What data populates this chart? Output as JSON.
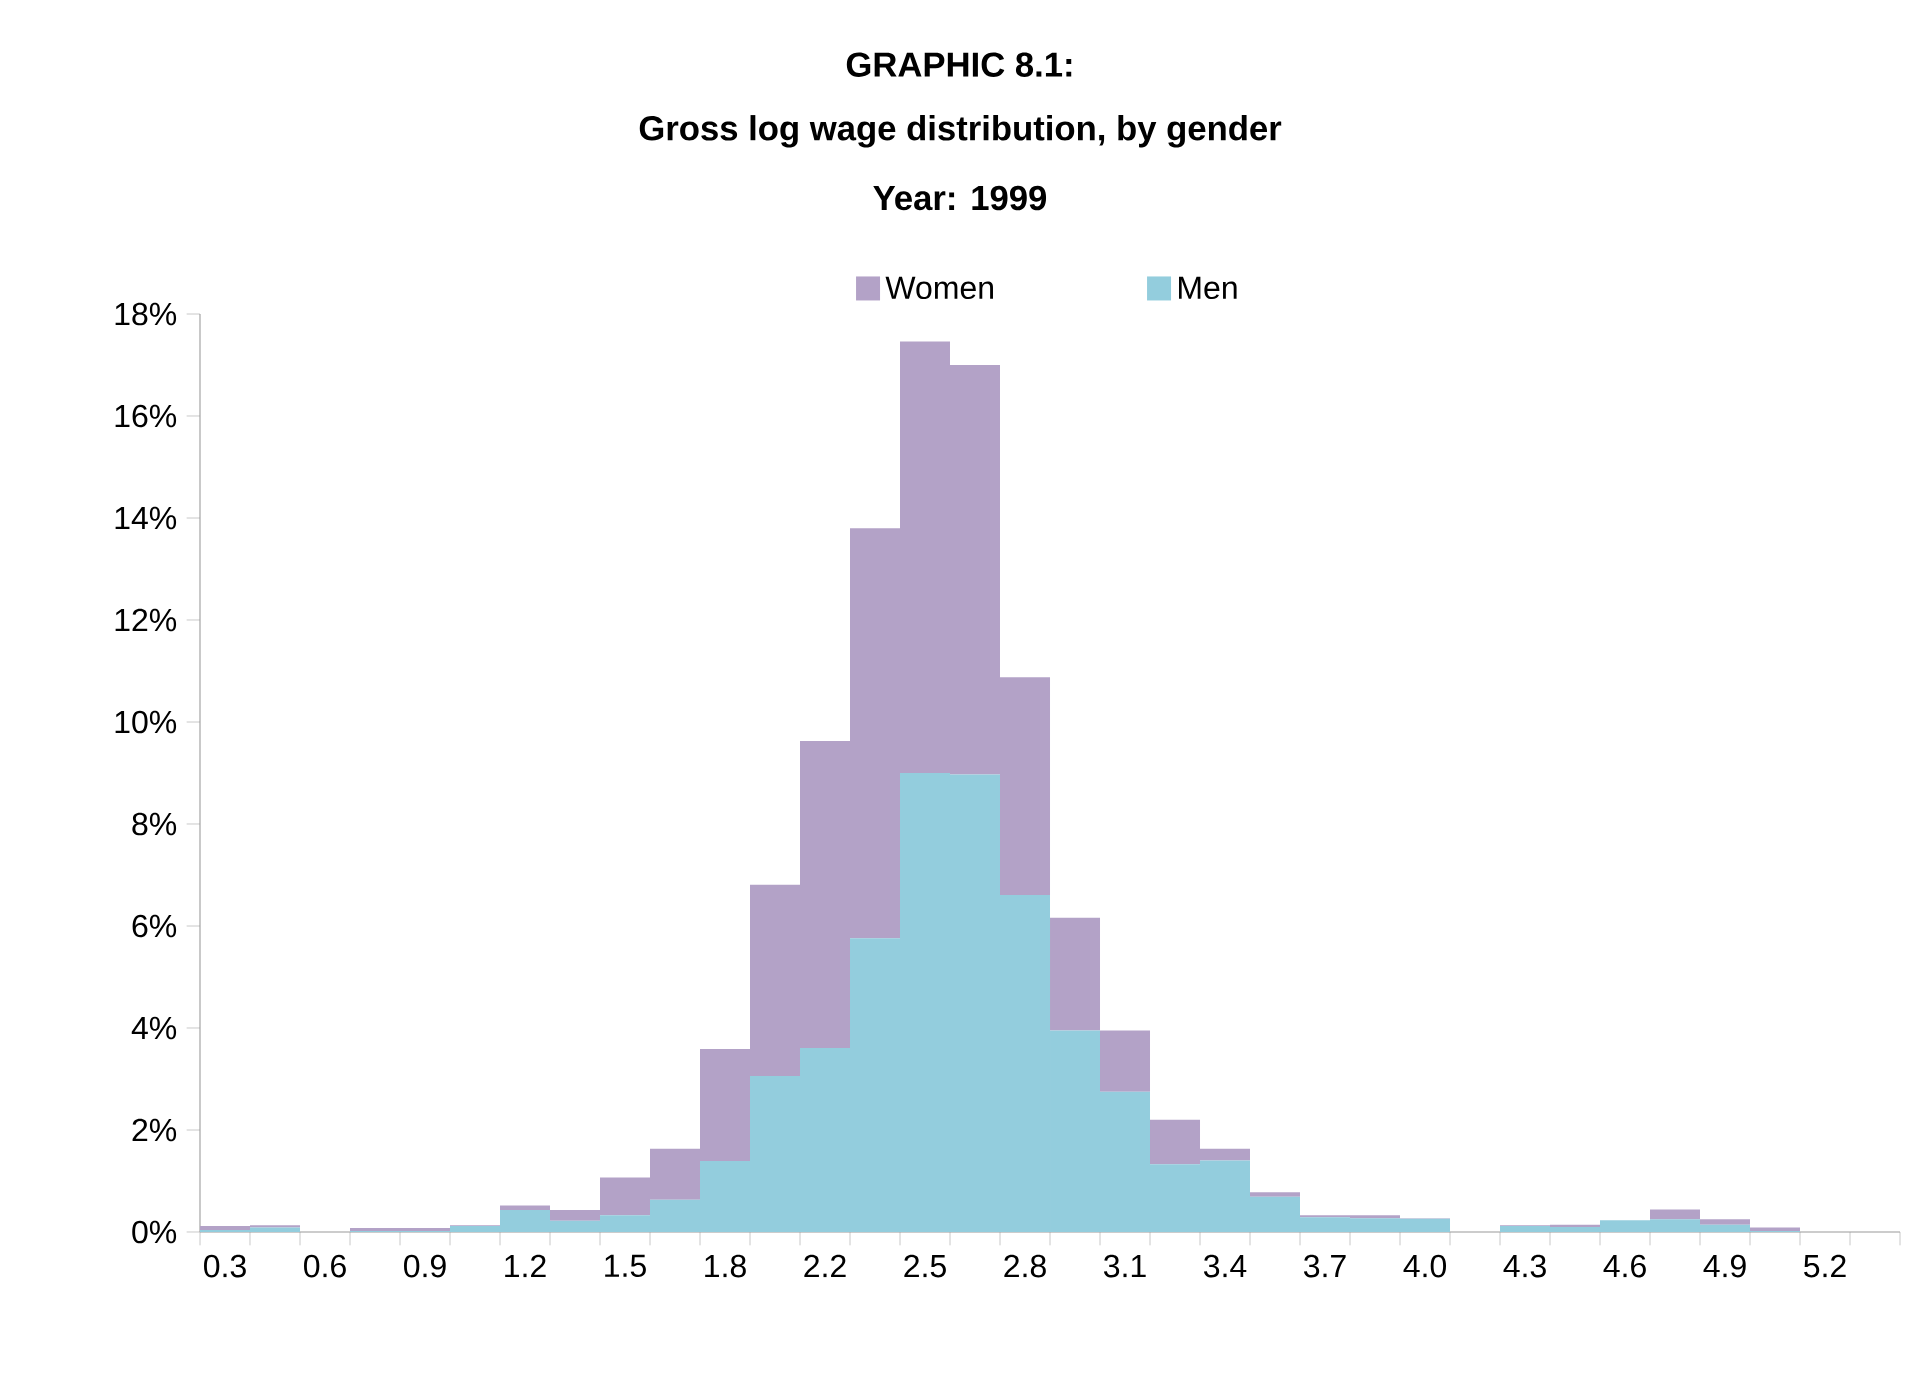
{
  "chart_data": {
    "type": "bar",
    "stacked": true,
    "title": "GRAPHIC 8.1:",
    "subtitle": "Gross log wage distribution, by gender",
    "annotations": [
      "Year: 1999"
    ],
    "categories": [
      "0.3",
      null,
      "0.6",
      null,
      "0.9",
      null,
      "1.2",
      null,
      "1.5",
      null,
      "1.8",
      null,
      "2.2",
      null,
      "2.5",
      null,
      "2.8",
      null,
      "3.1",
      null,
      "3.4",
      null,
      "3.7",
      null,
      "4.0",
      null,
      "4.3",
      null,
      "4.6",
      null,
      "4.9",
      null,
      "5.2",
      null
    ],
    "series": [
      {
        "name": "Men",
        "color": "#93cddd",
        "values": [
          0.04,
          0.09,
          0,
          0.02,
          0.02,
          0.12,
          0.43,
          0.22,
          0.33,
          0.63,
          1.39,
          3.06,
          3.61,
          5.76,
          9.0,
          8.97,
          6.61,
          3.95,
          2.75,
          1.33,
          1.4,
          0.69,
          0.29,
          0.27,
          0.26,
          0,
          0.12,
          0.1,
          0.23,
          0.25,
          0.14,
          0.02,
          0,
          0
        ]
      },
      {
        "name": "Women",
        "color": "#b3a2c7",
        "values": [
          0.08,
          0.04,
          0,
          0.06,
          0.06,
          0.01,
          0.09,
          0.21,
          0.74,
          1.0,
          2.2,
          3.75,
          6.02,
          8.04,
          8.46,
          8.03,
          4.27,
          2.21,
          1.2,
          0.87,
          0.23,
          0.09,
          0.04,
          0.06,
          0.01,
          0,
          0.01,
          0.04,
          0,
          0.19,
          0.11,
          0.07,
          0,
          0
        ]
      }
    ],
    "ylim": [
      0,
      18
    ],
    "yticks": [
      {
        "value": 0,
        "label": "0%"
      },
      {
        "value": 2,
        "label": "2%"
      },
      {
        "value": 4,
        "label": "4%"
      },
      {
        "value": 6,
        "label": "6%"
      },
      {
        "value": 8,
        "label": "8%"
      },
      {
        "value": 10,
        "label": "10%"
      },
      {
        "value": 12,
        "label": "12%"
      },
      {
        "value": 14,
        "label": "14%"
      },
      {
        "value": 16,
        "label": "16%"
      },
      {
        "value": 18,
        "label": "18%"
      }
    ],
    "legend": "top"
  }
}
